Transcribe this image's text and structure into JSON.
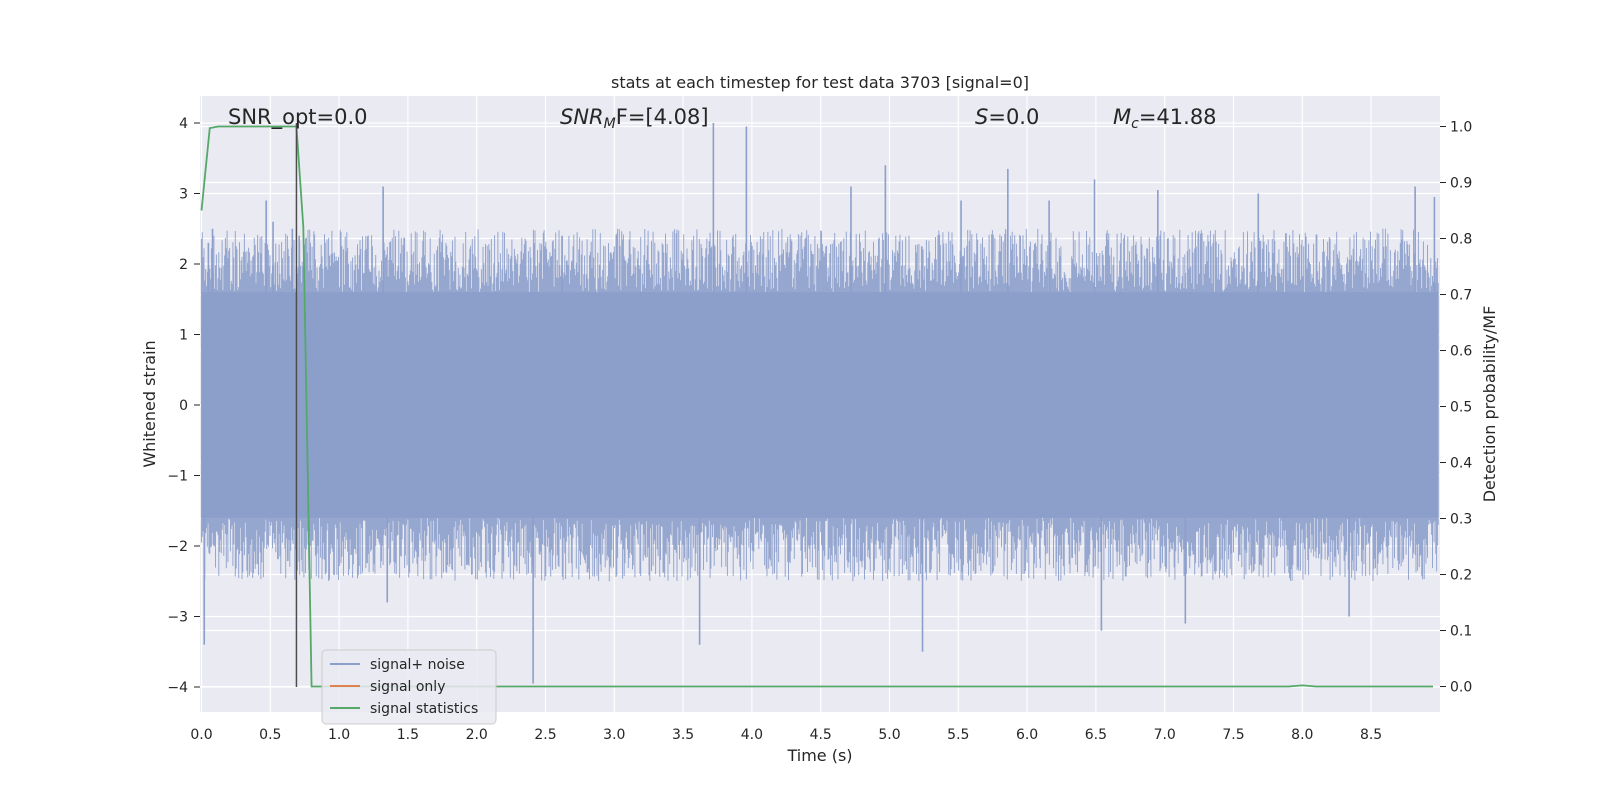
{
  "chart_data": {
    "type": "line",
    "title": "stats at each timestep for test data 3703 [signal=0]",
    "xlabel": "Time (s)",
    "ylabel": "Whitened strain",
    "y2label": "Detection probability/MF",
    "xlim": [
      0.0,
      9.0
    ],
    "ylim": [
      -4.4,
      4.4
    ],
    "y2lim": [
      -0.05,
      1.05
    ],
    "x_ticks": [
      "0.0",
      "0.5",
      "1.0",
      "1.5",
      "2.0",
      "2.5",
      "3.0",
      "3.5",
      "4.0",
      "4.5",
      "5.0",
      "5.5",
      "6.0",
      "6.5",
      "7.0",
      "7.5",
      "8.0",
      "8.5"
    ],
    "y_ticks": [
      "4",
      "3",
      "2",
      "1",
      "0",
      "−1",
      "−2",
      "−3",
      "−4"
    ],
    "y2_ticks": [
      "1.0",
      "0.9",
      "0.8",
      "0.7",
      "0.6",
      "0.5",
      "0.4",
      "0.3",
      "0.2",
      "0.1",
      "0.0"
    ],
    "grid": true,
    "legend": {
      "placement": "lower-left",
      "entries": [
        {
          "label": "signal+ noise",
          "color": "#8c9fcb"
        },
        {
          "label": "signal only",
          "color": "#dd8452"
        },
        {
          "label": "signal statistics",
          "color": "#55a868"
        }
      ]
    },
    "annotations": {
      "snr_opt": "SNR_opt=0.0",
      "snr_mf_name": "SNR",
      "snr_mf_sub": "M",
      "snr_mf_rest": "F=[4.08]",
      "s_name": "S",
      "s_rest": "=0.0",
      "mc_name": "M",
      "mc_sub": "c",
      "mc_rest": "=41.88"
    },
    "marker_x": 0.69,
    "series": [
      {
        "name": "signal+ noise",
        "axis": "left",
        "noise_band": [
          -1.6,
          1.6
        ],
        "spikes": [
          [
            0.02,
            -3.4
          ],
          [
            0.05,
            2.3
          ],
          [
            0.08,
            2.5
          ],
          [
            0.47,
            2.9
          ],
          [
            0.52,
            2.6
          ],
          [
            0.66,
            2.5
          ],
          [
            0.71,
            2.4
          ],
          [
            1.32,
            3.1
          ],
          [
            1.35,
            -2.8
          ],
          [
            2.41,
            -3.95
          ],
          [
            2.62,
            2.4
          ],
          [
            3.62,
            -3.4
          ],
          [
            3.72,
            4.0
          ],
          [
            3.96,
            3.95
          ],
          [
            4.72,
            3.1
          ],
          [
            4.97,
            3.4
          ],
          [
            5.24,
            -3.5
          ],
          [
            5.52,
            2.9
          ],
          [
            5.86,
            3.35
          ],
          [
            6.16,
            2.9
          ],
          [
            6.49,
            3.2
          ],
          [
            6.54,
            -3.2
          ],
          [
            6.95,
            3.05
          ],
          [
            7.15,
            -3.1
          ],
          [
            7.68,
            3.0
          ],
          [
            8.34,
            -3.0
          ],
          [
            8.82,
            3.1
          ],
          [
            8.96,
            2.95
          ]
        ]
      },
      {
        "name": "signal only",
        "axis": "left",
        "x": [
          0.0,
          9.0
        ],
        "y": [
          0.0,
          0.0
        ]
      },
      {
        "name": "signal statistics",
        "axis": "right",
        "x": [
          0.0,
          0.06,
          0.12,
          0.3,
          0.5,
          0.69,
          0.74,
          0.8,
          1.0,
          7.9,
          8.0,
          8.1,
          9.0
        ],
        "y": [
          0.85,
          0.997,
          1.0,
          1.0,
          1.0,
          1.0,
          0.82,
          0.0,
          0.0,
          0.0,
          0.002,
          0.0,
          0.0
        ]
      }
    ],
    "colors": {
      "plot_bg": "#eaeaf2",
      "grid": "#ffffff",
      "noise": "#8c9fcb",
      "signal": "#dd8452",
      "stats": "#55a868",
      "marker": "#4d4d4d"
    }
  }
}
